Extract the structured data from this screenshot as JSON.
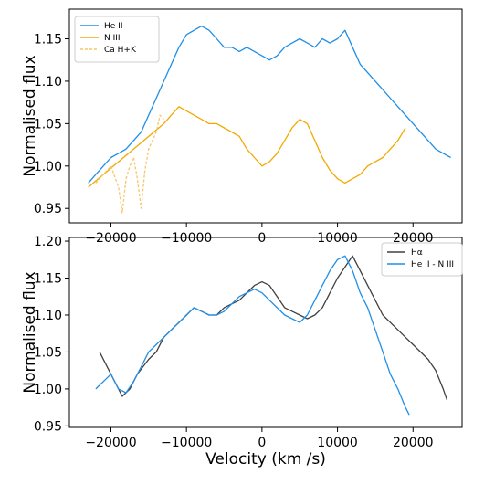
{
  "chart_data": [
    {
      "type": "line",
      "ylabel": "Normalised flux",
      "xlabel": "",
      "xlim": [
        -25500,
        26500
      ],
      "ylim": [
        0.933,
        1.185
      ],
      "xticks": [
        -20000,
        -10000,
        0,
        10000,
        20000
      ],
      "xtick_labels": [
        "−20000",
        "−10000",
        "0",
        "10000",
        "20000"
      ],
      "yticks": [
        0.95,
        1.0,
        1.05,
        1.1,
        1.15
      ],
      "ytick_labels": [
        "0.95",
        "1.00",
        "1.05",
        "1.10",
        "1.15"
      ],
      "legend_position": "top-left",
      "series": [
        {
          "name": "He II",
          "color": "#1f8fe8",
          "style": "solid",
          "points": [
            [
              -23000,
              0.98
            ],
            [
              -22000,
              0.99
            ],
            [
              -21000,
              1.0
            ],
            [
              -20000,
              1.01
            ],
            [
              -19000,
              1.015
            ],
            [
              -18000,
              1.02
            ],
            [
              -17000,
              1.03
            ],
            [
              -16000,
              1.04
            ],
            [
              -15000,
              1.06
            ],
            [
              -14000,
              1.08
            ],
            [
              -13000,
              1.1
            ],
            [
              -12000,
              1.12
            ],
            [
              -11000,
              1.14
            ],
            [
              -10000,
              1.155
            ],
            [
              -9000,
              1.16
            ],
            [
              -8000,
              1.165
            ],
            [
              -7000,
              1.16
            ],
            [
              -6000,
              1.15
            ],
            [
              -5000,
              1.14
            ],
            [
              -4000,
              1.14
            ],
            [
              -3000,
              1.135
            ],
            [
              -2000,
              1.14
            ],
            [
              -1000,
              1.135
            ],
            [
              0,
              1.13
            ],
            [
              1000,
              1.125
            ],
            [
              2000,
              1.13
            ],
            [
              3000,
              1.14
            ],
            [
              4000,
              1.145
            ],
            [
              5000,
              1.15
            ],
            [
              6000,
              1.145
            ],
            [
              7000,
              1.14
            ],
            [
              8000,
              1.15
            ],
            [
              9000,
              1.145
            ],
            [
              10000,
              1.15
            ],
            [
              11000,
              1.16
            ],
            [
              12000,
              1.14
            ],
            [
              13000,
              1.12
            ],
            [
              14000,
              1.11
            ],
            [
              15000,
              1.1
            ],
            [
              16000,
              1.09
            ],
            [
              17000,
              1.08
            ],
            [
              18000,
              1.07
            ],
            [
              19000,
              1.06
            ],
            [
              20000,
              1.05
            ],
            [
              21000,
              1.04
            ],
            [
              22000,
              1.03
            ],
            [
              23000,
              1.02
            ],
            [
              24000,
              1.015
            ],
            [
              25000,
              1.01
            ]
          ]
        },
        {
          "name": "N III",
          "color": "#f2a900",
          "style": "solid",
          "points": [
            [
              -23000,
              0.975
            ],
            [
              -13000,
              1.05
            ],
            [
              -12000,
              1.06
            ],
            [
              -11000,
              1.07
            ],
            [
              -10000,
              1.065
            ],
            [
              -9000,
              1.06
            ],
            [
              -8000,
              1.055
            ],
            [
              -7000,
              1.05
            ],
            [
              -6000,
              1.05
            ],
            [
              -5000,
              1.045
            ],
            [
              -4000,
              1.04
            ],
            [
              -3000,
              1.035
            ],
            [
              -2000,
              1.02
            ],
            [
              -1000,
              1.01
            ],
            [
              0,
              1.0
            ],
            [
              1000,
              1.005
            ],
            [
              2000,
              1.015
            ],
            [
              3000,
              1.03
            ],
            [
              4000,
              1.045
            ],
            [
              5000,
              1.055
            ],
            [
              6000,
              1.05
            ],
            [
              7000,
              1.03
            ],
            [
              8000,
              1.01
            ],
            [
              9000,
              0.995
            ],
            [
              10000,
              0.985
            ],
            [
              11000,
              0.98
            ],
            [
              12000,
              0.985
            ],
            [
              13000,
              0.99
            ],
            [
              14000,
              1.0
            ],
            [
              15000,
              1.005
            ],
            [
              16000,
              1.01
            ],
            [
              17000,
              1.02
            ],
            [
              18000,
              1.03
            ],
            [
              19000,
              1.045
            ]
          ]
        },
        {
          "name": "Ca H+K",
          "color": "#f7c56a",
          "style": "dashed",
          "points": [
            [
              -22000,
              0.98
            ],
            [
              -21000,
              0.99
            ],
            [
              -20000,
              1.0
            ],
            [
              -19000,
              0.975
            ],
            [
              -18500,
              0.945
            ],
            [
              -18000,
              0.985
            ],
            [
              -17500,
              1.0
            ],
            [
              -17000,
              1.01
            ],
            [
              -16500,
              0.985
            ],
            [
              -16000,
              0.95
            ],
            [
              -15500,
              0.995
            ],
            [
              -15000,
              1.02
            ],
            [
              -14000,
              1.04
            ],
            [
              -13500,
              1.06
            ],
            [
              -13000,
              1.055
            ]
          ]
        }
      ]
    },
    {
      "type": "line",
      "ylabel": "Normalised flux",
      "xlabel": "Velocity (km /s)",
      "xlim": [
        -25500,
        26500
      ],
      "ylim": [
        0.948,
        1.205
      ],
      "xticks": [
        -20000,
        -10000,
        0,
        10000,
        20000
      ],
      "xtick_labels": [
        "−20000",
        "−10000",
        "0",
        "10000",
        "20000"
      ],
      "yticks": [
        0.95,
        1.0,
        1.05,
        1.1,
        1.15,
        1.2
      ],
      "ytick_labels": [
        "0.95",
        "1.00",
        "1.05",
        "1.10",
        "1.15",
        "1.20"
      ],
      "legend_position": "top-right",
      "series": [
        {
          "name": "Hα",
          "color": "#404040",
          "style": "solid",
          "points": [
            [
              -21500,
              1.05
            ],
            [
              -20500,
              1.03
            ],
            [
              -19500,
              1.01
            ],
            [
              -18500,
              0.99
            ],
            [
              -17500,
              1.0
            ],
            [
              -16500,
              1.02
            ],
            [
              -15000,
              1.04
            ],
            [
              -14000,
              1.05
            ],
            [
              -13000,
              1.07
            ],
            [
              -12000,
              1.08
            ],
            [
              -11000,
              1.09
            ],
            [
              -10000,
              1.1
            ],
            [
              -9000,
              1.11
            ],
            [
              -8000,
              1.105
            ],
            [
              -7000,
              1.1
            ],
            [
              -6000,
              1.1
            ],
            [
              -5000,
              1.11
            ],
            [
              -4000,
              1.115
            ],
            [
              -3000,
              1.12
            ],
            [
              -2000,
              1.13
            ],
            [
              -1000,
              1.14
            ],
            [
              0,
              1.145
            ],
            [
              1000,
              1.14
            ],
            [
              2000,
              1.125
            ],
            [
              3000,
              1.11
            ],
            [
              4000,
              1.105
            ],
            [
              5000,
              1.1
            ],
            [
              6000,
              1.095
            ],
            [
              7000,
              1.1
            ],
            [
              8000,
              1.11
            ],
            [
              9000,
              1.13
            ],
            [
              10000,
              1.15
            ],
            [
              11000,
              1.165
            ],
            [
              12000,
              1.18
            ],
            [
              13000,
              1.16
            ],
            [
              14000,
              1.14
            ],
            [
              15000,
              1.12
            ],
            [
              16000,
              1.1
            ],
            [
              17000,
              1.09
            ],
            [
              18000,
              1.08
            ],
            [
              19000,
              1.07
            ],
            [
              20000,
              1.06
            ],
            [
              21000,
              1.05
            ],
            [
              22000,
              1.04
            ],
            [
              23000,
              1.025
            ],
            [
              24000,
              1.0
            ],
            [
              24500,
              0.985
            ]
          ]
        },
        {
          "name": "He II - N III",
          "color": "#1f8fe8",
          "style": "solid",
          "points": [
            [
              -22000,
              1.0
            ],
            [
              -21000,
              1.01
            ],
            [
              -20000,
              1.02
            ],
            [
              -19000,
              1.0
            ],
            [
              -18000,
              0.995
            ],
            [
              -17000,
              1.01
            ],
            [
              -16000,
              1.03
            ],
            [
              -15000,
              1.05
            ],
            [
              -14000,
              1.06
            ],
            [
              -13000,
              1.07
            ],
            [
              -12000,
              1.08
            ],
            [
              -11000,
              1.09
            ],
            [
              -10000,
              1.1
            ],
            [
              -9000,
              1.11
            ],
            [
              -8000,
              1.105
            ],
            [
              -7000,
              1.1
            ],
            [
              -6000,
              1.1
            ],
            [
              -5000,
              1.105
            ],
            [
              -4000,
              1.115
            ],
            [
              -3000,
              1.125
            ],
            [
              -2000,
              1.13
            ],
            [
              -1000,
              1.135
            ],
            [
              0,
              1.13
            ],
            [
              1000,
              1.12
            ],
            [
              2000,
              1.11
            ],
            [
              3000,
              1.1
            ],
            [
              4000,
              1.095
            ],
            [
              5000,
              1.09
            ],
            [
              6000,
              1.1
            ],
            [
              7000,
              1.12
            ],
            [
              8000,
              1.14
            ],
            [
              9000,
              1.16
            ],
            [
              10000,
              1.175
            ],
            [
              11000,
              1.18
            ],
            [
              12000,
              1.16
            ],
            [
              13000,
              1.13
            ],
            [
              14000,
              1.11
            ],
            [
              15000,
              1.08
            ],
            [
              16000,
              1.05
            ],
            [
              17000,
              1.02
            ],
            [
              18000,
              1.0
            ],
            [
              19000,
              0.975
            ],
            [
              19500,
              0.965
            ]
          ]
        }
      ]
    }
  ]
}
